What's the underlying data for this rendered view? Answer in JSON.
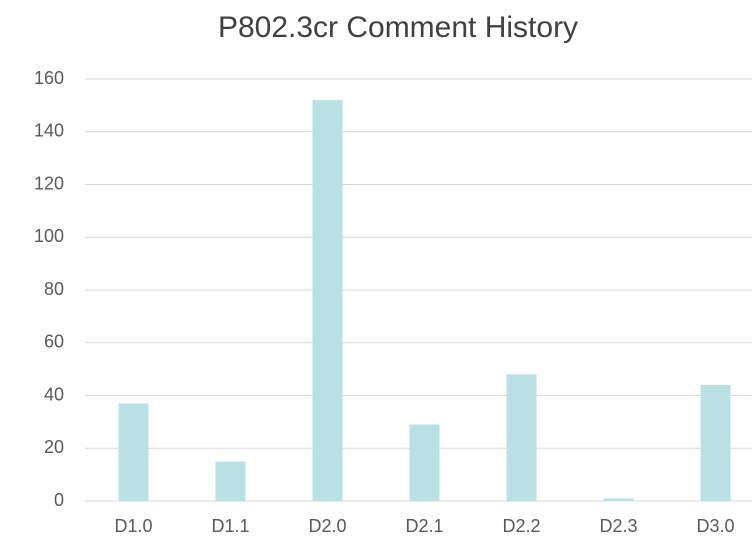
{
  "chart_data": {
    "type": "bar",
    "title": "P802.3cr Comment History",
    "categories": [
      "D1.0",
      "D1.1",
      "D2.0",
      "D2.1",
      "D2.2",
      "D2.3",
      "D3.0"
    ],
    "values": [
      37,
      15,
      152,
      29,
      48,
      1,
      44
    ],
    "color": "#b9e0e3",
    "ylim": [
      0,
      160
    ],
    "yticks": [
      0,
      20,
      40,
      60,
      80,
      100,
      120,
      140,
      160
    ],
    "grid": true
  }
}
